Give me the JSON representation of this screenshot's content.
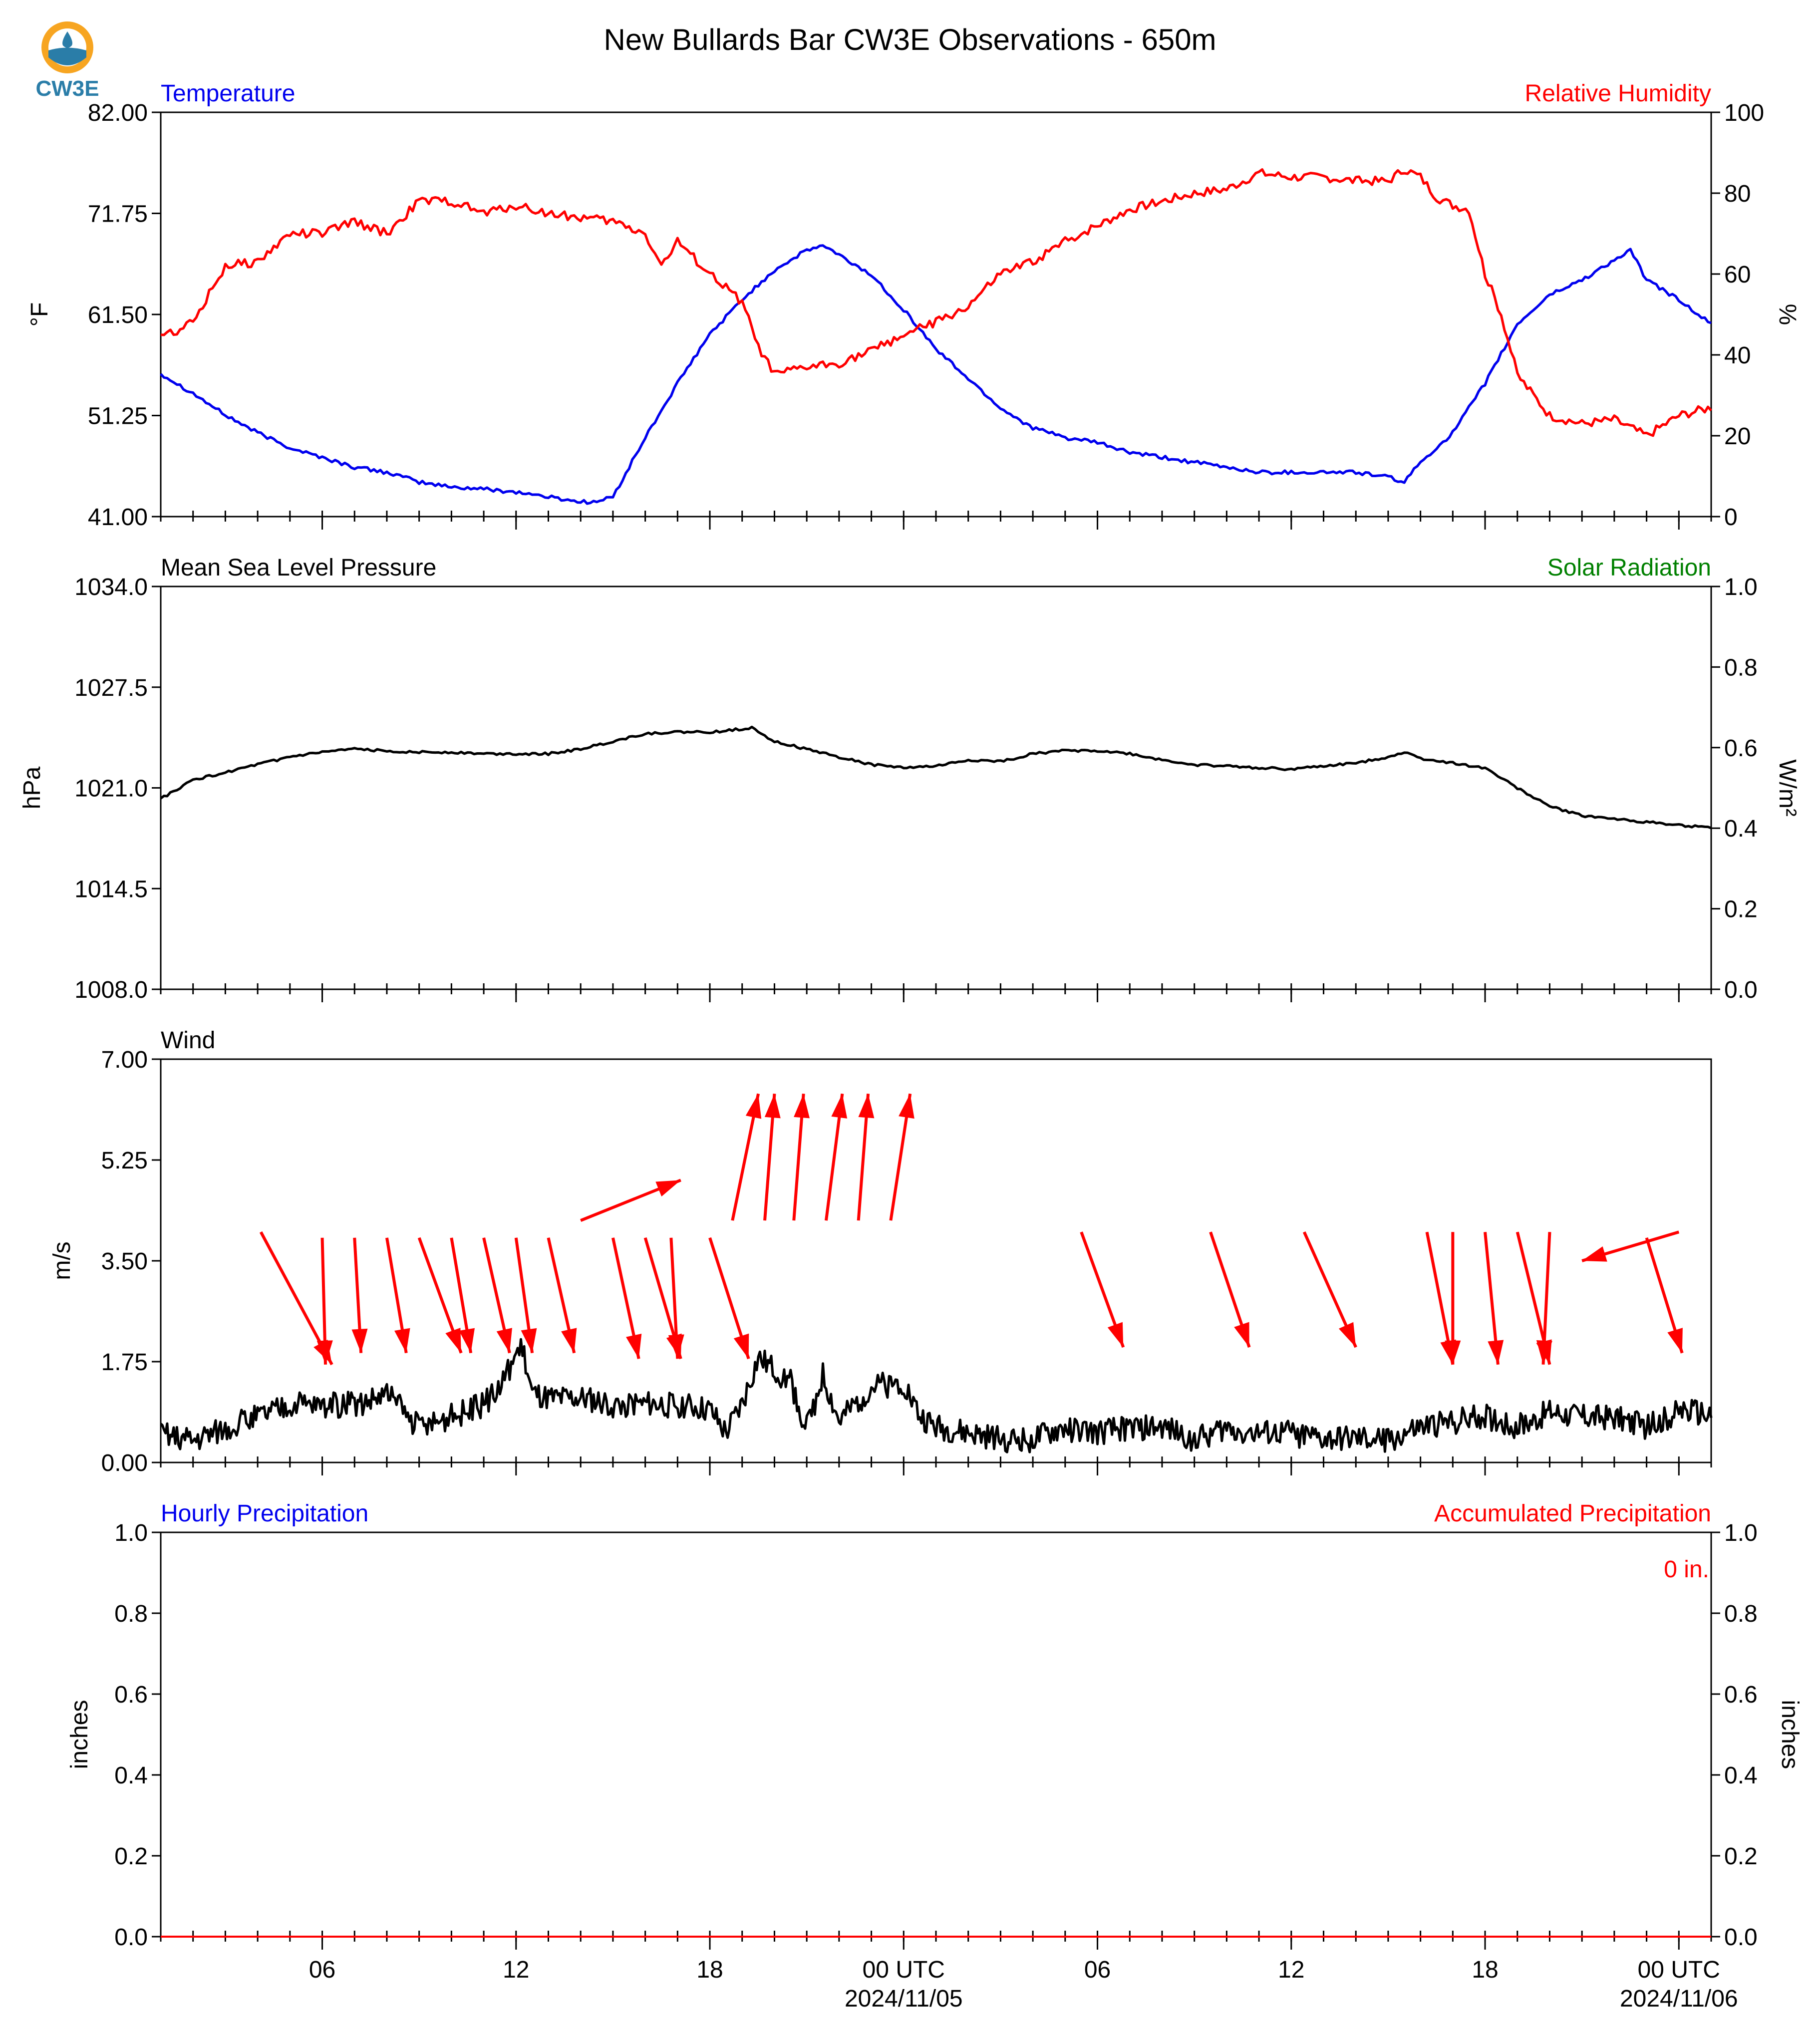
{
  "title": "New Bullards Bar CW3E Observations - 650m",
  "logo_text": "CW3E",
  "colors": {
    "temperature": "#0000ee",
    "humidity": "#ff0000",
    "pressure": "#000000",
    "solar": "#008000",
    "wind": "#000000",
    "arrows": "#ff0000",
    "precip_hourly": "#0000ee",
    "precip_accum": "#ff0000"
  },
  "x_axis": {
    "hours_span": [
      0,
      48
    ],
    "major_ticks": [
      {
        "hour": 5,
        "label": "06",
        "sublabel": ""
      },
      {
        "hour": 11,
        "label": "12",
        "sublabel": ""
      },
      {
        "hour": 17,
        "label": "18",
        "sublabel": ""
      },
      {
        "hour": 23,
        "label": "00 UTC",
        "sublabel": "2024/11/05"
      },
      {
        "hour": 29,
        "label": "06",
        "sublabel": ""
      },
      {
        "hour": 35,
        "label": "12",
        "sublabel": ""
      },
      {
        "hour": 41,
        "label": "18",
        "sublabel": ""
      },
      {
        "hour": 47,
        "label": "00 UTC",
        "sublabel": "2024/11/06"
      }
    ]
  },
  "chart_data": [
    {
      "type": "line",
      "panel": "temperature-humidity",
      "left_title": "Temperature",
      "right_title": "Relative Humidity",
      "ylabel_left": "°F",
      "ylabel_right": "%",
      "ylim_left": [
        41,
        82
      ],
      "ylim_right": [
        0,
        100
      ],
      "yticks_left": [
        "41.00",
        "51.25",
        "61.50",
        "71.75",
        "82.00"
      ],
      "yticks_right": [
        "0",
        "20",
        "40",
        "60",
        "80",
        "100"
      ],
      "series": [
        {
          "name": "Temperature",
          "axis": "left",
          "x": [
            0,
            1,
            2,
            3,
            4,
            5,
            6,
            7,
            8,
            9,
            10,
            11,
            12,
            13,
            13.5,
            14,
            15,
            16,
            17,
            18,
            19,
            20,
            20.5,
            21,
            22,
            23,
            24,
            25,
            26,
            27,
            28,
            29,
            30,
            31,
            32,
            33,
            34,
            35,
            36,
            37,
            38,
            38.5,
            39,
            40,
            41,
            42,
            43,
            44,
            45,
            45.5,
            46,
            47,
            48
          ],
          "values": [
            55.5,
            53.5,
            51.3,
            49.5,
            48.0,
            47.0,
            46.0,
            45.5,
            44.5,
            44.0,
            43.8,
            43.5,
            43.0,
            42.5,
            42.5,
            43.0,
            49.0,
            54.5,
            59.5,
            63.0,
            66.0,
            68.0,
            68.5,
            67.5,
            65.5,
            62.0,
            58.0,
            55.0,
            52.0,
            50.0,
            49.0,
            48.5,
            47.5,
            47.0,
            46.5,
            46.0,
            45.5,
            45.5,
            45.5,
            45.5,
            45.0,
            44.5,
            46.5,
            49.5,
            54.5,
            60.5,
            63.5,
            65.0,
            67.0,
            68.0,
            65.0,
            63.0,
            60.5
          ]
        },
        {
          "name": "Relative Humidity",
          "axis": "right",
          "x": [
            0,
            0.5,
            1,
            1.5,
            2,
            3,
            4,
            5,
            6,
            7,
            8,
            9,
            10,
            11,
            12,
            13,
            14,
            15,
            15.5,
            16,
            17,
            18,
            18.5,
            19,
            20,
            21,
            22,
            23,
            24,
            25,
            26,
            27,
            28,
            29,
            30,
            31,
            32,
            33,
            34,
            35,
            36,
            37,
            38,
            38.5,
            39,
            39.5,
            40,
            40.5,
            41,
            41.5,
            42,
            42.5,
            43,
            44,
            45,
            46,
            47,
            48
          ],
          "values": [
            45,
            46,
            48,
            55,
            62,
            63,
            70,
            70,
            73,
            70,
            78,
            78,
            75,
            77,
            75,
            74,
            73,
            70,
            62,
            68,
            60,
            53,
            42,
            35,
            37,
            38,
            41,
            45,
            48,
            52,
            60,
            63,
            68,
            72,
            76,
            78,
            80,
            81,
            85,
            84,
            84,
            83,
            83,
            86,
            84,
            79,
            77,
            76,
            60,
            50,
            35,
            30,
            25,
            23,
            24,
            20,
            25,
            27
          ]
        }
      ]
    },
    {
      "type": "line",
      "panel": "pressure-solar",
      "left_title": "Mean Sea Level Pressure",
      "right_title": "Solar Radiation",
      "ylabel_left": "hPa",
      "ylabel_right": "W/m²",
      "ylim_left": [
        1008,
        1034
      ],
      "ylim_right": [
        0,
        1
      ],
      "yticks_left": [
        "1008.0",
        "1014.5",
        "1021.0",
        "1027.5",
        "1034.0"
      ],
      "yticks_right": [
        "0.0",
        "0.2",
        "0.4",
        "0.6",
        "0.8",
        "1.0"
      ],
      "series": [
        {
          "name": "Mean Sea Level Pressure",
          "axis": "left",
          "x": [
            0,
            1,
            2,
            3,
            4,
            5,
            6,
            7,
            8,
            9,
            10,
            11,
            12,
            13,
            14,
            15,
            16,
            17,
            18,
            18.3,
            19,
            20,
            21,
            22,
            23,
            24,
            25,
            26,
            27,
            28,
            29,
            30,
            31,
            32,
            33,
            34,
            35,
            36,
            37,
            38,
            38.5,
            39,
            40,
            41,
            42,
            43,
            44,
            45,
            46,
            47,
            48
          ],
          "values": [
            1020.3,
            1021.5,
            1022.0,
            1022.5,
            1023.0,
            1023.3,
            1023.5,
            1023.4,
            1023.3,
            1023.3,
            1023.2,
            1023.2,
            1023.2,
            1023.5,
            1024.0,
            1024.5,
            1024.6,
            1024.6,
            1024.8,
            1024.9,
            1024.0,
            1023.5,
            1023.0,
            1022.5,
            1022.3,
            1022.4,
            1022.8,
            1022.7,
            1023.2,
            1023.4,
            1023.4,
            1023.2,
            1022.8,
            1022.5,
            1022.4,
            1022.3,
            1022.2,
            1022.4,
            1022.6,
            1023.0,
            1023.3,
            1022.9,
            1022.6,
            1022.3,
            1021.0,
            1019.8,
            1019.2,
            1019.0,
            1018.8,
            1018.6,
            1018.4
          ]
        }
      ]
    },
    {
      "type": "line",
      "panel": "wind",
      "left_title": "Wind",
      "ylabel_left": "m/s",
      "ylim_left": [
        0,
        7
      ],
      "yticks_left": [
        "0.00",
        "1.75",
        "3.50",
        "5.25",
        "7.00"
      ],
      "series": [
        {
          "name": "Wind",
          "axis": "left",
          "x": [
            0,
            1,
            2,
            3,
            4,
            5,
            6,
            7,
            8,
            9,
            10,
            10.5,
            11,
            11.2,
            11.5,
            12,
            13,
            14,
            15,
            16,
            17,
            17.5,
            18,
            18.5,
            19,
            19.5,
            20,
            20.5,
            21,
            22,
            23,
            23.5,
            24,
            25,
            26,
            27,
            28,
            29,
            30,
            31,
            32,
            33,
            34,
            35,
            36,
            37,
            38,
            39,
            40,
            41,
            42,
            43,
            44,
            45,
            46,
            47,
            48
          ],
          "values": [
            0.5,
            0.4,
            0.6,
            0.8,
            1.0,
            1.0,
            1.0,
            1.2,
            0.6,
            0.8,
            1.0,
            1.3,
            1.9,
            2.0,
            1.2,
            1.1,
            1.1,
            1.0,
            1.0,
            1.0,
            0.9,
            0.5,
            1.0,
            1.8,
            1.6,
            1.4,
            0.6,
            1.5,
            0.7,
            1.3,
            1.4,
            0.8,
            0.6,
            0.5,
            0.4,
            0.4,
            0.6,
            0.5,
            0.6,
            0.6,
            0.4,
            0.6,
            0.5,
            0.5,
            0.4,
            0.4,
            0.4,
            0.6,
            0.7,
            0.8,
            0.6,
            0.9,
            0.8,
            0.8,
            0.6,
            0.9,
            0.8
          ]
        },
        {
          "name": "Wind direction arrows",
          "axis": "left",
          "kind": "arrows",
          "arrows": [
            {
              "x": 3.1,
              "y": 4.0,
              "dx": 2.2,
              "dy": -2.3
            },
            {
              "x": 5.0,
              "y": 3.9,
              "dx": 0.1,
              "dy": -2.2
            },
            {
              "x": 6.0,
              "y": 3.9,
              "dx": 0.2,
              "dy": -2.0
            },
            {
              "x": 7.0,
              "y": 3.9,
              "dx": 0.6,
              "dy": -2.0
            },
            {
              "x": 8.0,
              "y": 3.9,
              "dx": 1.3,
              "dy": -2.0
            },
            {
              "x": 9.0,
              "y": 3.9,
              "dx": 0.6,
              "dy": -2.0
            },
            {
              "x": 10.0,
              "y": 3.9,
              "dx": 0.8,
              "dy": -2.0
            },
            {
              "x": 11.0,
              "y": 3.9,
              "dx": 0.5,
              "dy": -2.0
            },
            {
              "x": 12.0,
              "y": 3.9,
              "dx": 0.8,
              "dy": -2.0
            },
            {
              "x": 14.0,
              "y": 3.9,
              "dx": 0.8,
              "dy": -2.1
            },
            {
              "x": 15.0,
              "y": 3.9,
              "dx": 1.1,
              "dy": -2.1
            },
            {
              "x": 15.8,
              "y": 3.9,
              "dx": 0.2,
              "dy": -2.1
            },
            {
              "x": 17.0,
              "y": 3.9,
              "dx": 1.2,
              "dy": -2.1
            },
            {
              "x": 13.0,
              "y": 4.2,
              "dx": 3.1,
              "dy": 0.7
            },
            {
              "x": 17.7,
              "y": 4.2,
              "dx": 0.8,
              "dy": 2.2
            },
            {
              "x": 18.7,
              "y": 4.2,
              "dx": 0.3,
              "dy": 2.2
            },
            {
              "x": 19.6,
              "y": 4.2,
              "dx": 0.3,
              "dy": 2.2
            },
            {
              "x": 20.6,
              "y": 4.2,
              "dx": 0.5,
              "dy": 2.2
            },
            {
              "x": 21.6,
              "y": 4.2,
              "dx": 0.3,
              "dy": 2.2
            },
            {
              "x": 22.6,
              "y": 4.2,
              "dx": 0.6,
              "dy": 2.2
            },
            {
              "x": 28.5,
              "y": 4.0,
              "dx": 1.3,
              "dy": -2.0
            },
            {
              "x": 32.5,
              "y": 4.0,
              "dx": 1.2,
              "dy": -2.0
            },
            {
              "x": 35.4,
              "y": 4.0,
              "dx": 1.6,
              "dy": -2.0
            },
            {
              "x": 39.2,
              "y": 4.0,
              "dx": 0.8,
              "dy": -2.3
            },
            {
              "x": 40.0,
              "y": 4.0,
              "dx": 0.0,
              "dy": -2.3
            },
            {
              "x": 41.0,
              "y": 4.0,
              "dx": 0.4,
              "dy": -2.3
            },
            {
              "x": 42.0,
              "y": 4.0,
              "dx": 1.0,
              "dy": -2.3
            },
            {
              "x": 43.0,
              "y": 4.0,
              "dx": -0.2,
              "dy": -2.3
            },
            {
              "x": 47.0,
              "y": 4.0,
              "dx": -3.0,
              "dy": -0.5
            },
            {
              "x": 46.0,
              "y": 3.9,
              "dx": 1.1,
              "dy": -2.0
            }
          ]
        }
      ]
    },
    {
      "type": "line",
      "panel": "precipitation",
      "left_title": "Hourly Precipitation",
      "right_title": "Accumulated Precipitation",
      "annotation": "0 in.",
      "ylabel_left": "inches",
      "ylabel_right": "inches",
      "ylim_left": [
        0,
        1
      ],
      "ylim_right": [
        0,
        1
      ],
      "yticks_left": [
        "0.0",
        "0.2",
        "0.4",
        "0.6",
        "0.8",
        "1.0"
      ],
      "yticks_right": [
        "0.0",
        "0.2",
        "0.4",
        "0.6",
        "0.8",
        "1.0"
      ],
      "series": [
        {
          "name": "Hourly Precipitation",
          "axis": "left",
          "x": [
            0,
            48
          ],
          "values": [
            0,
            0
          ]
        },
        {
          "name": "Accumulated Precipitation",
          "axis": "right",
          "x": [
            0,
            48
          ],
          "values": [
            0,
            0
          ]
        }
      ]
    }
  ]
}
